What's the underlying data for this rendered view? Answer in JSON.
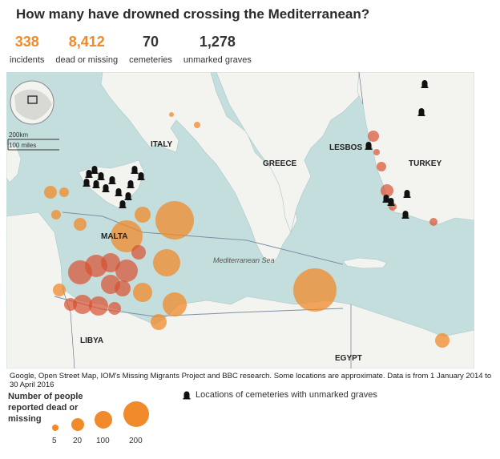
{
  "title": "How many have drowned crossing the Mediterranean?",
  "stats": [
    {
      "value": "338",
      "label": "incidents",
      "color": "#f08a2a"
    },
    {
      "value": "8,412",
      "label": "dead or missing",
      "color": "#f08a2a"
    },
    {
      "value": "70",
      "label": "cemeteries",
      "color": "#333333"
    },
    {
      "value": "1,278",
      "label": "unmarked graves",
      "color": "#333333"
    }
  ],
  "map": {
    "labels": {
      "italy": "ITALY",
      "greece": "GREECE",
      "lesbos": "LESBOS",
      "turkey": "TURKEY",
      "malta": "MALTA",
      "libya": "LIBYA",
      "egypt": "EGYPT",
      "sea": "Mediterranean Sea"
    },
    "scale": {
      "km": "200km",
      "miles": "100 miles"
    },
    "colors": {
      "sea": "#c4dede",
      "land": "#f3f3f0",
      "bubble": "#f08a2a",
      "bubble_dense": "#d9502f"
    }
  },
  "source": "Google, Open Street Map, IOM's Missing Migrants Project and BBC research. Some locations are approximate. Data is from 1 January 2014 to 30 April 2016",
  "legend": {
    "title": "Number of people reported dead or missing",
    "sizes": [
      {
        "label": "5",
        "value": 5
      },
      {
        "label": "20",
        "value": 20
      },
      {
        "label": "100",
        "value": 100
      },
      {
        "label": "200",
        "value": 200
      }
    ],
    "cemetery_label": "Locations of cemeteries with unmarked graves",
    "cemetery_icon": "gravestone-icon"
  }
}
